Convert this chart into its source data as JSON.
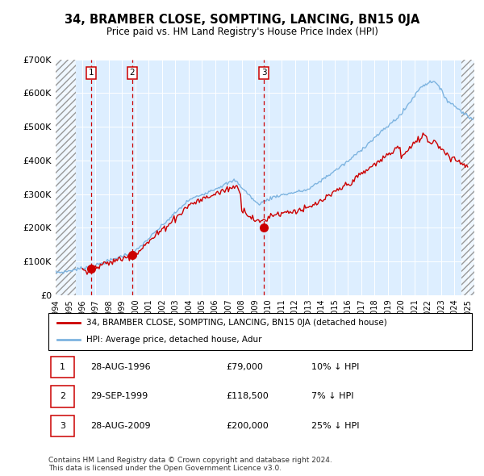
{
  "title": "34, BRAMBER CLOSE, SOMPTING, LANCING, BN15 0JA",
  "subtitle": "Price paid vs. HM Land Registry's House Price Index (HPI)",
  "ylim": [
    0,
    700000
  ],
  "yticks": [
    0,
    100000,
    200000,
    300000,
    400000,
    500000,
    600000,
    700000
  ],
  "ytick_labels": [
    "£0",
    "£100K",
    "£200K",
    "£300K",
    "£400K",
    "£500K",
    "£600K",
    "£700K"
  ],
  "hpi_color": "#7eb4e0",
  "price_color": "#cc0000",
  "marker_color": "#cc0000",
  "background_color": "#ddeeff",
  "transaction_dates": [
    1996.66,
    1999.75,
    2009.66
  ],
  "transaction_prices": [
    79000,
    118500,
    200000
  ],
  "transaction_labels": [
    "1",
    "2",
    "3"
  ],
  "legend_label_price": "34, BRAMBER CLOSE, SOMPTING, LANCING, BN15 0JA (detached house)",
  "legend_label_hpi": "HPI: Average price, detached house, Adur",
  "table_rows": [
    [
      "1",
      "28-AUG-1996",
      "£79,000",
      "10% ↓ HPI"
    ],
    [
      "2",
      "29-SEP-1999",
      "£118,500",
      "7% ↓ HPI"
    ],
    [
      "3",
      "28-AUG-2009",
      "£200,000",
      "25% ↓ HPI"
    ]
  ],
  "footer": "Contains HM Land Registry data © Crown copyright and database right 2024.\nThis data is licensed under the Open Government Licence v3.0.",
  "xmin": 1994.0,
  "xmax": 2025.5,
  "hatch_left_end": 1995.5,
  "hatch_right_start": 2024.5
}
